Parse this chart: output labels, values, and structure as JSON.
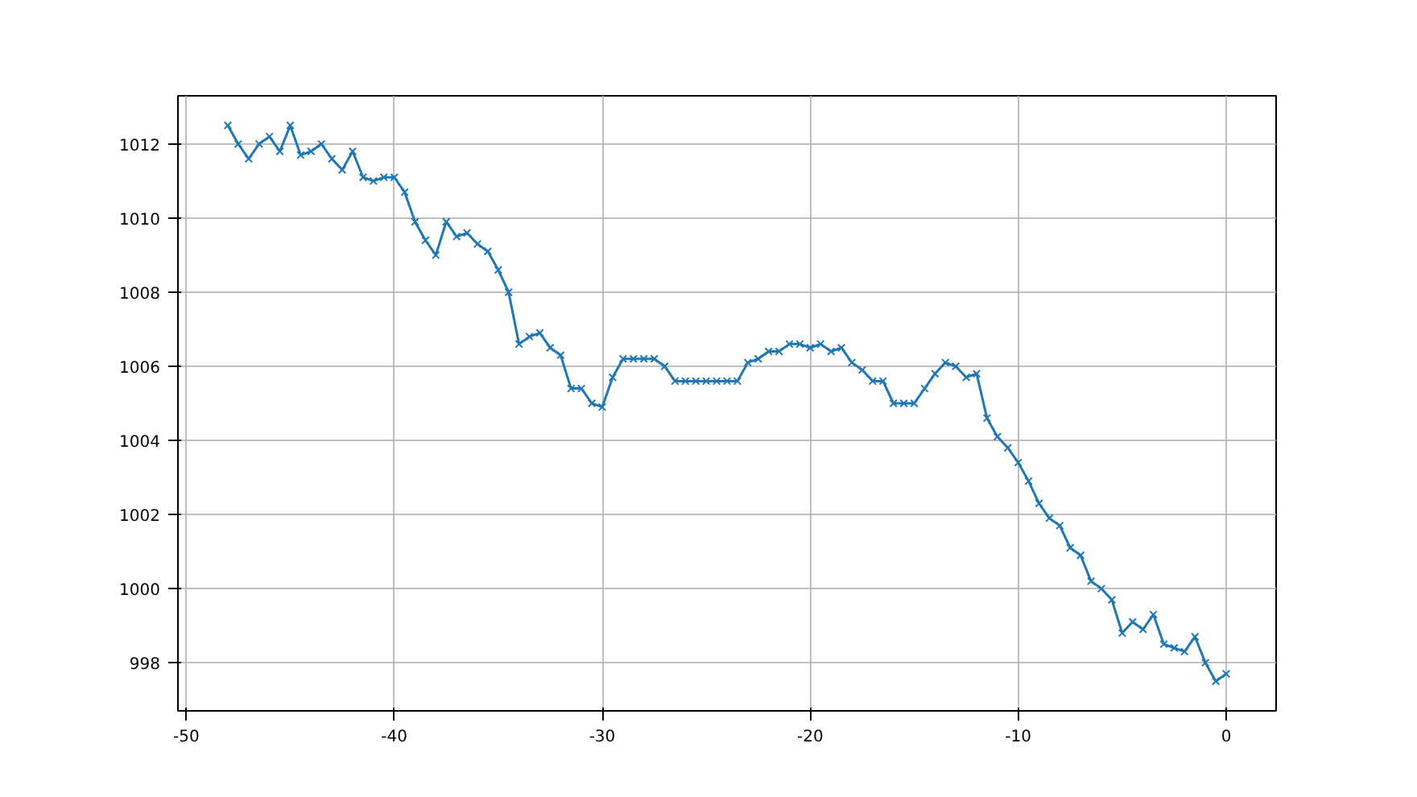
{
  "chart_data": {
    "type": "line",
    "x": [
      -48,
      -47.5,
      -47,
      -46.5,
      -46,
      -45.5,
      -45,
      -44.5,
      -44,
      -43.5,
      -43,
      -42.5,
      -42,
      -41.5,
      -41,
      -40.5,
      -40,
      -39.5,
      -39,
      -38.5,
      -38,
      -37.5,
      -37,
      -36.5,
      -36,
      -35.5,
      -35,
      -34.5,
      -34,
      -33.5,
      -33,
      -32.5,
      -32,
      -31.5,
      -31,
      -30.5,
      -30,
      -29.5,
      -29,
      -28.5,
      -28,
      -27.5,
      -27,
      -26.5,
      -26,
      -25.5,
      -25,
      -24.5,
      -24,
      -23.5,
      -23,
      -22.5,
      -22,
      -21.5,
      -21,
      -20.5,
      -20,
      -19.5,
      -19,
      -18.5,
      -18,
      -17.5,
      -17,
      -16.5,
      -16,
      -15.5,
      -15,
      -14.5,
      -14,
      -13.5,
      -13,
      -12.5,
      -12,
      -11.5,
      -11,
      -10.5,
      -10,
      -9.5,
      -9,
      -8.5,
      -8,
      -7.5,
      -7,
      -6.5,
      -6,
      -5.5,
      -5,
      -4.5,
      -4,
      -3.5,
      -3,
      -2.5,
      -2,
      -1.5,
      -1,
      -0.5,
      0
    ],
    "series": [
      {
        "color": "#1f77b4",
        "values": [
          1012.5,
          1012.0,
          1011.6,
          1012.0,
          1012.2,
          1011.8,
          1012.5,
          1011.7,
          1011.8,
          1012.0,
          1011.6,
          1011.3,
          1011.8,
          1011.1,
          1011.0,
          1011.1,
          1011.1,
          1010.7,
          1009.9,
          1009.4,
          1009.0,
          1009.9,
          1009.5,
          1009.6,
          1009.3,
          1009.1,
          1008.6,
          1008.0,
          1006.6,
          1006.8,
          1006.9,
          1006.5,
          1006.3,
          1005.4,
          1005.4,
          1005.0,
          1004.9,
          1005.7,
          1006.2,
          1006.2,
          1006.2,
          1006.2,
          1006.0,
          1005.6,
          1005.6,
          1005.6,
          1005.6,
          1005.6,
          1005.6,
          1005.6,
          1006.1,
          1006.2,
          1006.4,
          1006.4,
          1006.6,
          1006.6,
          1006.5,
          1006.6,
          1006.4,
          1006.5,
          1006.1,
          1005.9,
          1005.6,
          1005.6,
          1005.0,
          1005.0,
          1005.0,
          1005.4,
          1005.8,
          1006.1,
          1006.0,
          1005.7,
          1005.8,
          1004.6,
          1004.1,
          1003.8,
          1003.4,
          1002.9,
          1002.3,
          1001.9,
          1001.7,
          1001.1,
          1000.9,
          1000.2,
          1000.0,
          999.7,
          998.8,
          999.1,
          998.9,
          999.3,
          998.5,
          998.4,
          998.3,
          998.7,
          998.0,
          997.5,
          997.7
        ]
      }
    ],
    "xlim": [
      -50.4,
      2.4
    ],
    "ylim": [
      996.7,
      1013.3
    ],
    "xticks": [
      -50,
      -40,
      -30,
      -20,
      -10,
      0
    ],
    "yticks": [
      998,
      1000,
      1002,
      1004,
      1006,
      1008,
      1010,
      1012
    ],
    "grid": true,
    "marker": "cross",
    "line_style": "solid"
  }
}
